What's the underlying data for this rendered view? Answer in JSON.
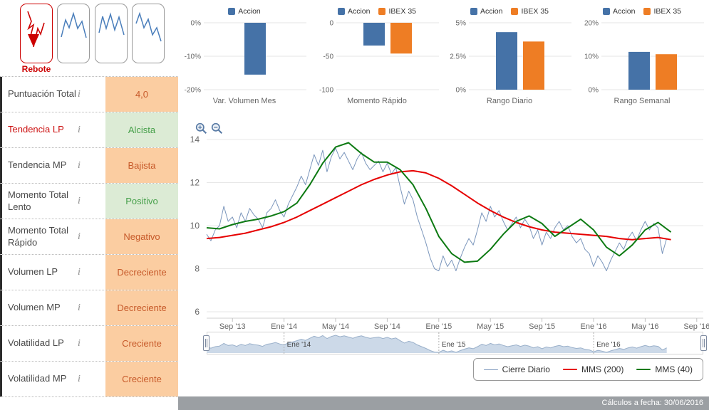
{
  "sidebar": {
    "patterns": {
      "selected_label": "Rebote"
    },
    "info_icon": "i",
    "rows": [
      {
        "label": "Puntuación Total",
        "value": "4,0",
        "tone": "orange",
        "selected": false
      },
      {
        "label": "Tendencia LP",
        "value": "Alcista",
        "tone": "green",
        "selected": true
      },
      {
        "label": "Tendencia MP",
        "value": "Bajista",
        "tone": "orange",
        "selected": false
      },
      {
        "label": "Momento Total Lento",
        "value": "Positivo",
        "tone": "green",
        "selected": false
      },
      {
        "label": "Momento Total Rápido",
        "value": "Negativo",
        "tone": "orange",
        "selected": false
      },
      {
        "label": "Volumen LP",
        "value": "Decreciente",
        "tone": "orange",
        "selected": false
      },
      {
        "label": "Volumen MP",
        "value": "Decreciente",
        "tone": "orange",
        "selected": false
      },
      {
        "label": "Volatilidad LP",
        "value": "Creciente",
        "tone": "orange",
        "selected": false
      },
      {
        "label": "Volatilidad MP",
        "value": "Creciente",
        "tone": "orange",
        "selected": false
      }
    ]
  },
  "colors": {
    "accion": "#4572a7",
    "ibex": "#ee7d24",
    "daily": "#7b96bc",
    "mms200": "#e60000",
    "mms40": "#0d7a12",
    "selected_text": "#cc1111"
  },
  "chart_data": [
    {
      "id": "var-volumen-mes",
      "type": "bar",
      "title": "Var. Volumen Mes",
      "ymin": -20,
      "ymax": 0,
      "ticks": [
        {
          "v": 0,
          "label": "0%"
        },
        {
          "v": -10,
          "label": "-10%"
        },
        {
          "v": -20,
          "label": "-20%"
        }
      ],
      "series": [
        {
          "name": "Accion",
          "value": -15.5,
          "color_key": "accion"
        }
      ]
    },
    {
      "id": "momento-rapido",
      "type": "bar",
      "title": "Momento Rápido",
      "ymin": -100,
      "ymax": 0,
      "ticks": [
        {
          "v": 0,
          "label": "0"
        },
        {
          "v": -50,
          "label": "-50"
        },
        {
          "v": -100,
          "label": "-100"
        }
      ],
      "series": [
        {
          "name": "Accion",
          "value": -34,
          "color_key": "accion"
        },
        {
          "name": "IBEX 35",
          "value": -46,
          "color_key": "ibex"
        }
      ]
    },
    {
      "id": "rango-diario",
      "type": "bar",
      "title": "Rango Diario",
      "ymin": 0,
      "ymax": 5,
      "ticks": [
        {
          "v": 5,
          "label": "5%"
        },
        {
          "v": 2.5,
          "label": "2.5%"
        },
        {
          "v": 0,
          "label": "0%"
        }
      ],
      "series": [
        {
          "name": "Accion",
          "value": 4.3,
          "color_key": "accion"
        },
        {
          "name": "IBEX 35",
          "value": 3.6,
          "color_key": "ibex"
        }
      ]
    },
    {
      "id": "rango-semanal",
      "type": "bar",
      "title": "Rango Semanal",
      "ymin": 0,
      "ymax": 20,
      "ticks": [
        {
          "v": 20,
          "label": "20%"
        },
        {
          "v": 10,
          "label": "10%"
        },
        {
          "v": 0,
          "label": "0%"
        }
      ],
      "series": [
        {
          "name": "Accion",
          "value": 11.3,
          "color_key": "accion"
        },
        {
          "name": "IBEX 35",
          "value": 10.6,
          "color_key": "ibex"
        }
      ]
    },
    {
      "id": "price-history",
      "type": "line",
      "xmin": 0,
      "xmax": 38.5,
      "x_ticks": [
        {
          "m": 2,
          "label": "Sep '13"
        },
        {
          "m": 6,
          "label": "Ene '14"
        },
        {
          "m": 10,
          "label": "May '14"
        },
        {
          "m": 14,
          "label": "Sep '14"
        },
        {
          "m": 18,
          "label": "Ene '15"
        },
        {
          "m": 22,
          "label": "May '15"
        },
        {
          "m": 26,
          "label": "Sep '15"
        },
        {
          "m": 30,
          "label": "Ene '16"
        },
        {
          "m": 34,
          "label": "May '16"
        },
        {
          "m": 38,
          "label": "Sep '16"
        }
      ],
      "y_ticks": [
        6,
        8,
        10,
        12,
        14
      ],
      "series": [
        {
          "name": "Cierre Diario",
          "color_key": "daily",
          "width": 1,
          "x_step": 0.33333,
          "values": [
            9.6,
            9.3,
            9.8,
            10.0,
            10.9,
            10.2,
            10.4,
            9.9,
            10.6,
            10.2,
            10.8,
            10.5,
            10.3,
            9.9,
            10.6,
            10.8,
            11.2,
            10.7,
            10.4,
            11.0,
            11.4,
            11.8,
            12.3,
            11.9,
            12.6,
            13.3,
            12.8,
            13.5,
            12.5,
            13.2,
            13.6,
            13.1,
            13.4,
            13.0,
            12.6,
            13.1,
            13.4,
            12.9,
            12.6,
            12.8,
            13.0,
            12.5,
            12.9,
            12.4,
            12.7,
            11.8,
            11.0,
            11.6,
            11.2,
            10.4,
            9.8,
            9.2,
            8.5,
            8.0,
            7.9,
            8.6,
            8.1,
            8.4,
            7.9,
            8.5,
            9.0,
            9.4,
            9.1,
            9.8,
            10.6,
            10.2,
            10.9,
            10.4,
            10.7,
            10.2,
            9.8,
            10.1,
            10.4,
            9.9,
            10.3,
            10.0,
            9.4,
            9.8,
            9.1,
            9.7,
            9.4,
            9.9,
            10.2,
            9.8,
            10.0,
            9.5,
            9.2,
            9.4,
            8.9,
            8.7,
            8.1,
            8.6,
            8.3,
            7.9,
            8.4,
            8.8,
            9.2,
            8.9,
            9.4,
            9.7,
            9.3,
            9.8,
            10.2,
            9.8,
            10.1,
            9.9,
            8.7,
            9.4
          ]
        },
        {
          "name": "MMS (200)",
          "color_key": "mms200",
          "width": 2,
          "x_step": 1,
          "values": [
            9.4,
            9.45,
            9.55,
            9.65,
            9.8,
            9.95,
            10.15,
            10.4,
            10.7,
            11.0,
            11.3,
            11.6,
            11.9,
            12.15,
            12.35,
            12.5,
            12.55,
            12.45,
            12.2,
            11.85,
            11.45,
            11.05,
            10.7,
            10.4,
            10.15,
            9.95,
            9.8,
            9.7,
            9.65,
            9.6,
            9.55,
            9.5,
            9.4,
            9.35,
            9.4,
            9.45,
            9.35
          ]
        },
        {
          "name": "MMS (40)",
          "color_key": "mms40",
          "width": 2,
          "x_step": 1,
          "values": [
            9.9,
            9.85,
            10.05,
            10.2,
            10.3,
            10.45,
            10.65,
            11.05,
            11.9,
            12.9,
            13.65,
            13.85,
            13.35,
            12.95,
            12.95,
            12.6,
            11.9,
            10.8,
            9.5,
            8.7,
            8.3,
            8.35,
            8.9,
            9.6,
            10.2,
            10.45,
            10.1,
            9.5,
            9.9,
            10.3,
            9.8,
            9.0,
            8.6,
            9.1,
            9.8,
            10.15,
            9.7
          ]
        }
      ]
    },
    {
      "id": "navigator",
      "type": "area",
      "source_series": "Cierre Diario",
      "labels": [
        {
          "m": 6,
          "label": "Ene '14"
        },
        {
          "m": 18,
          "label": "Ene '15"
        },
        {
          "m": 30,
          "label": "Ene '16"
        }
      ]
    }
  ],
  "footer": {
    "text": "Cálculos a fecha: 30/06/2016"
  }
}
